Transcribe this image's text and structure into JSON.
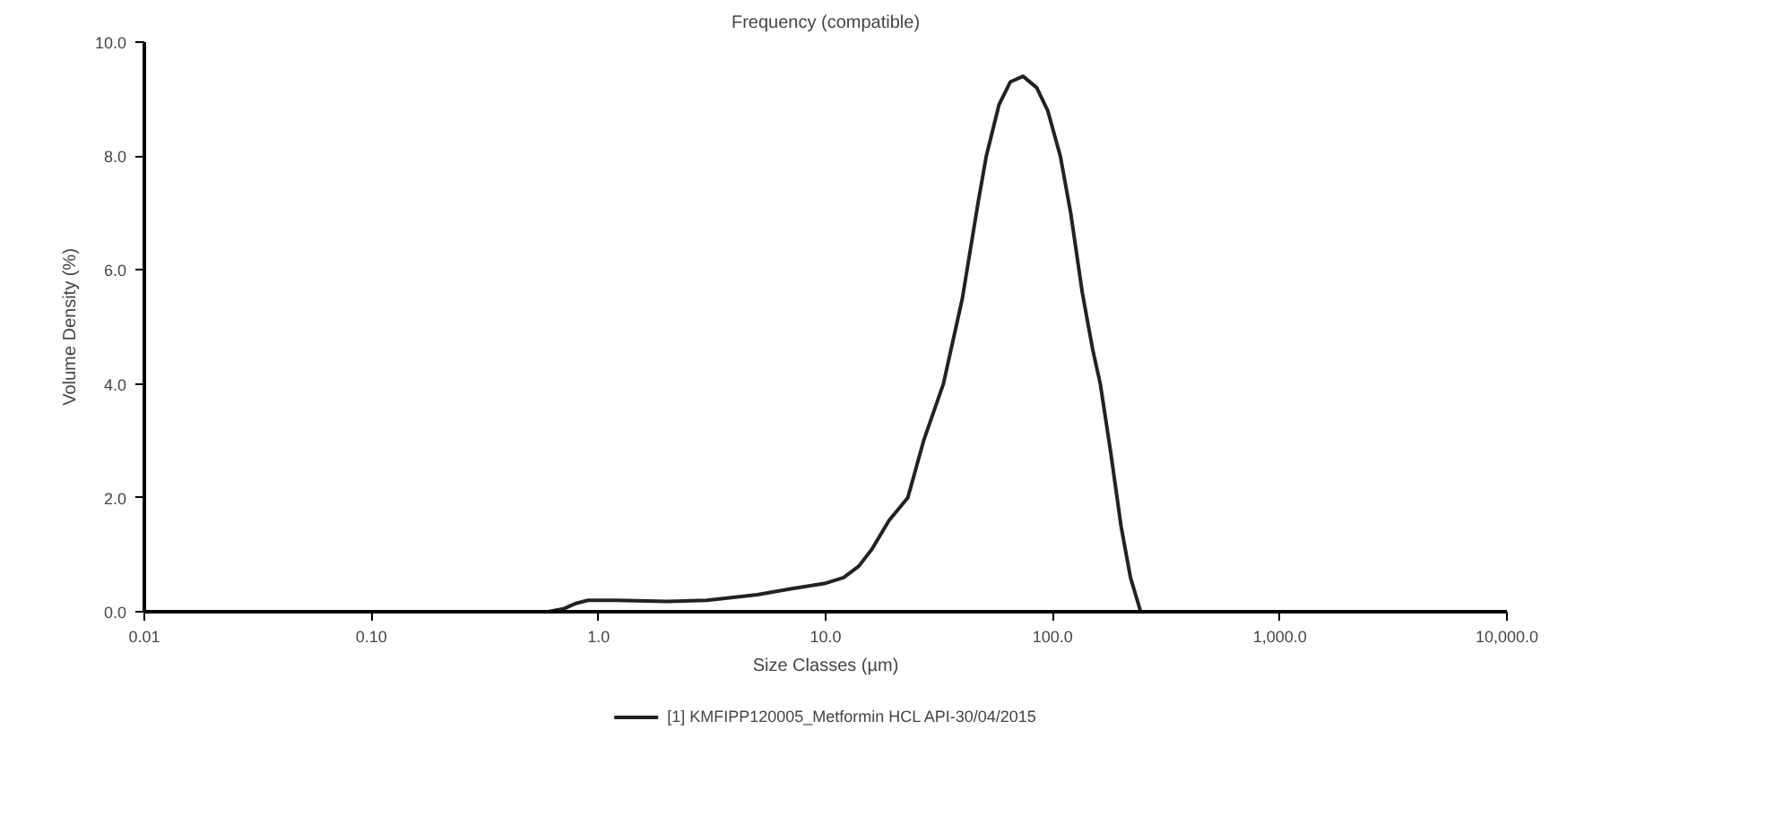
{
  "chart_data": {
    "type": "line",
    "title": "Frequency (compatible)",
    "xlabel": "Size Classes (µm)",
    "ylabel": "Volume Density (%)",
    "log": "x",
    "grid": false,
    "legend": "bottom",
    "marker": "none",
    "line_style": "solid",
    "xlim": [
      0.01,
      10000
    ],
    "ylim": [
      0,
      10
    ],
    "xticks": [
      {
        "value": 0.01,
        "label": "0.01"
      },
      {
        "value": 0.1,
        "label": "0.10"
      },
      {
        "value": 1,
        "label": "1.0"
      },
      {
        "value": 10,
        "label": "10.0"
      },
      {
        "value": 100,
        "label": "100.0"
      },
      {
        "value": 1000,
        "label": "1,000.0"
      },
      {
        "value": 10000,
        "label": "10,000.0"
      }
    ],
    "yticks": [
      {
        "value": 0,
        "label": "0.0"
      },
      {
        "value": 2,
        "label": "2.0"
      },
      {
        "value": 4,
        "label": "4.0"
      },
      {
        "value": 6,
        "label": "6.0"
      },
      {
        "value": 8,
        "label": "8.0"
      },
      {
        "value": 10,
        "label": "10.0"
      }
    ],
    "series": [
      {
        "name": "[1] KMFIPP120005_Metformin HCL API-30/04/2015",
        "color": "#222222",
        "x": [
          0.01,
          0.1,
          0.6,
          0.7,
          0.8,
          0.9,
          1.2,
          2,
          3,
          5,
          7,
          10,
          12,
          14,
          16,
          19,
          23,
          27,
          33,
          40,
          47,
          51,
          58,
          65,
          74,
          85,
          95,
          108,
          120,
          135,
          150,
          162,
          180,
          200,
          220,
          244,
          300,
          1000,
          10000
        ],
        "values": [
          0,
          0,
          0,
          0.05,
          0.15,
          0.2,
          0.2,
          0.18,
          0.2,
          0.3,
          0.4,
          0.5,
          0.6,
          0.8,
          1.1,
          1.6,
          2.0,
          3.0,
          4.0,
          5.5,
          7.2,
          8.0,
          8.9,
          9.3,
          9.4,
          9.2,
          8.8,
          8.0,
          7.0,
          5.6,
          4.6,
          4.0,
          2.8,
          1.5,
          0.6,
          0,
          0,
          0,
          0
        ]
      }
    ]
  }
}
